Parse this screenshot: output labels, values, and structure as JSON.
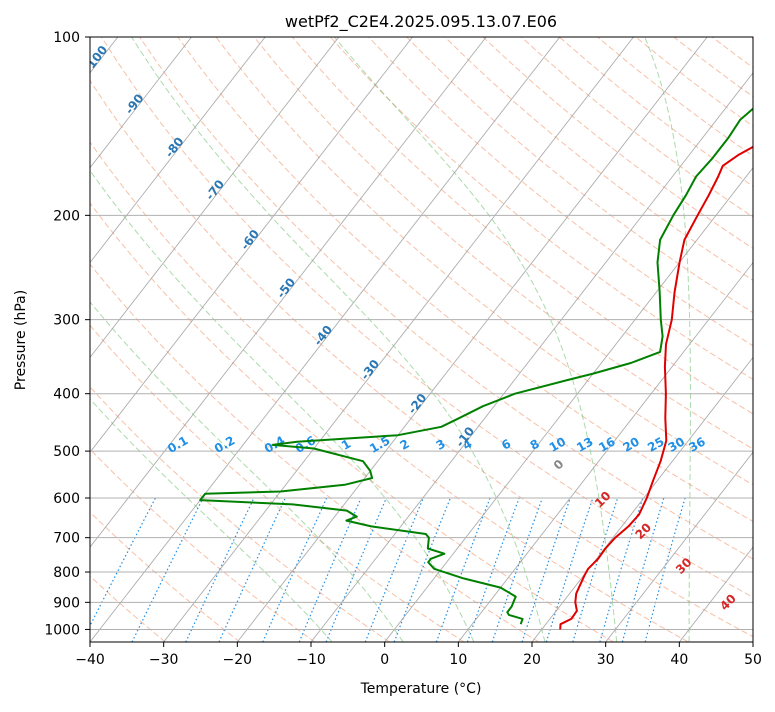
{
  "chart_data": {
    "type": "line",
    "title": "wetPf2_C2E4.2025.095.13.07.E06",
    "xlabel": "Temperature (°C)",
    "ylabel": "Pressure (hPa)",
    "xlim": [
      -40,
      50
    ],
    "ylim": [
      1050,
      100
    ],
    "y_scale": "log",
    "grid": true,
    "x_ticks": [
      -40,
      -30,
      -20,
      -10,
      0,
      10,
      20,
      30,
      40,
      50
    ],
    "y_ticks": [
      100,
      200,
      300,
      400,
      500,
      600,
      700,
      800,
      900,
      1000
    ],
    "colors": {
      "temperature": "#e00000",
      "dewpoint": "#008000",
      "dry_adiabat": "#f4a582",
      "moist_adiabat": "#66bb66",
      "mixing_ratio": "#1f8fe8",
      "isotherm": "#999999",
      "label_blue": "#2a77b4",
      "label_red": "#d62728"
    },
    "series": [
      {
        "points": [
          {
            "p": 1000,
            "t": 22.5
          },
          {
            "p": 980,
            "t": 22.0
          },
          {
            "p": 960,
            "t": 22.9
          },
          {
            "p": 930,
            "t": 22.8
          },
          {
            "p": 900,
            "t": 21.7
          },
          {
            "p": 870,
            "t": 20.9
          },
          {
            "p": 840,
            "t": 20.5
          },
          {
            "p": 810,
            "t": 20.1
          },
          {
            "p": 790,
            "t": 19.9
          },
          {
            "p": 760,
            "t": 20.2
          },
          {
            "p": 730,
            "t": 20.1
          },
          {
            "p": 700,
            "t": 20.3
          },
          {
            "p": 670,
            "t": 20.9
          },
          {
            "p": 640,
            "t": 21.1
          },
          {
            "p": 600,
            "t": 20.4
          },
          {
            "p": 560,
            "t": 19.4
          },
          {
            "p": 520,
            "t": 18.4
          },
          {
            "p": 480,
            "t": 17.0
          },
          {
            "p": 440,
            "t": 14.5
          },
          {
            "p": 400,
            "t": 12.0
          },
          {
            "p": 360,
            "t": 9.0
          },
          {
            "p": 330,
            "t": 6.8
          },
          {
            "p": 300,
            "t": 5.0
          },
          {
            "p": 270,
            "t": 2.5
          },
          {
            "p": 240,
            "t": 0.0
          },
          {
            "p": 220,
            "t": -1.7
          },
          {
            "p": 200,
            "t": -2.5
          },
          {
            "p": 185,
            "t": -3.1
          },
          {
            "p": 172,
            "t": -3.8
          },
          {
            "p": 165,
            "t": -4.3
          },
          {
            "p": 158,
            "t": -3.3
          },
          {
            "p": 150,
            "t": -1.4
          },
          {
            "p": 142,
            "t": 0.6
          },
          {
            "p": 135,
            "t": 3.4
          },
          {
            "p": 130,
            "t": 5.2
          },
          {
            "p": 122,
            "t": 6.5
          },
          {
            "p": 115,
            "t": 6.3
          },
          {
            "p": 108,
            "t": 7.0
          },
          {
            "p": 100,
            "t": 9.0
          }
        ]
      },
      {
        "points": [
          {
            "p": 980,
            "t": 16.6
          },
          {
            "p": 960,
            "t": 16.3
          },
          {
            "p": 945,
            "t": 14.0
          },
          {
            "p": 935,
            "t": 13.5
          },
          {
            "p": 915,
            "t": 13.5
          },
          {
            "p": 880,
            "t": 13.0
          },
          {
            "p": 850,
            "t": 10.0
          },
          {
            "p": 820,
            "t": 4.0
          },
          {
            "p": 790,
            "t": -1.0
          },
          {
            "p": 770,
            "t": -2.5
          },
          {
            "p": 760,
            "t": -2.5
          },
          {
            "p": 745,
            "t": -1.2
          },
          {
            "p": 730,
            "t": -4.0
          },
          {
            "p": 700,
            "t": -5.0
          },
          {
            "p": 690,
            "t": -5.8
          },
          {
            "p": 670,
            "t": -14.0
          },
          {
            "p": 655,
            "t": -18.0
          },
          {
            "p": 645,
            "t": -17.0
          },
          {
            "p": 630,
            "t": -19.0
          },
          {
            "p": 615,
            "t": -27.0
          },
          {
            "p": 605,
            "t": -40.0
          },
          {
            "p": 590,
            "t": -40.0
          },
          {
            "p": 585,
            "t": -30.0
          },
          {
            "p": 570,
            "t": -22.0
          },
          {
            "p": 555,
            "t": -19.0
          },
          {
            "p": 540,
            "t": -20.0
          },
          {
            "p": 520,
            "t": -22.0
          },
          {
            "p": 495,
            "t": -30.0
          },
          {
            "p": 488,
            "t": -36.0
          },
          {
            "p": 482,
            "t": -33.0
          },
          {
            "p": 470,
            "t": -20.0
          },
          {
            "p": 455,
            "t": -15.0
          },
          {
            "p": 440,
            "t": -13.5
          },
          {
            "p": 420,
            "t": -11.5
          },
          {
            "p": 400,
            "t": -8.5
          },
          {
            "p": 380,
            "t": -3.0
          },
          {
            "p": 370,
            "t": 0.0
          },
          {
            "p": 355,
            "t": 4.0
          },
          {
            "p": 340,
            "t": 6.8
          },
          {
            "p": 320,
            "t": 5.5
          },
          {
            "p": 300,
            "t": 3.5
          },
          {
            "p": 270,
            "t": 0.5
          },
          {
            "p": 240,
            "t": -3.0
          },
          {
            "p": 220,
            "t": -5.0
          },
          {
            "p": 200,
            "t": -5.8
          },
          {
            "p": 185,
            "t": -6.2
          },
          {
            "p": 172,
            "t": -6.8
          },
          {
            "p": 160,
            "t": -6.5
          },
          {
            "p": 148,
            "t": -6.5
          },
          {
            "p": 138,
            "t": -6.8
          },
          {
            "p": 130,
            "t": -6.0
          },
          {
            "p": 122,
            "t": -3.0
          },
          {
            "p": 112,
            "t": -0.8
          },
          {
            "p": 104,
            "t": 0.6
          },
          {
            "p": 100,
            "t": 1.0
          }
        ]
      }
    ],
    "background_lines": {
      "isotherms_every": 10,
      "dry_adiabats_theta_K": [
        210,
        220,
        230,
        240,
        250,
        260,
        270,
        280,
        290,
        300,
        310,
        320,
        330,
        340,
        350,
        360,
        370,
        380,
        390,
        400,
        410,
        420,
        430,
        440,
        450,
        460,
        470,
        480,
        490,
        500
      ],
      "moist_adiabats_C": [
        -10,
        0,
        10,
        20,
        30,
        40
      ],
      "mixing_ratios_gkg": [
        0.1,
        0.2,
        0.4,
        0.6,
        1,
        1.5,
        2,
        3,
        4,
        6,
        8,
        10,
        13,
        16,
        20,
        25,
        30,
        36
      ]
    },
    "annotations": {
      "mixing_ratio_labels": [
        "0.1",
        "0.2",
        "0.4",
        "0.6",
        "1",
        "1.5",
        "2",
        "3",
        "4",
        "6",
        "8",
        "10",
        "13",
        "16",
        "20",
        "25",
        "30",
        "36"
      ],
      "isotherm_labels": [
        {
          "text": "-100",
          "t": -100,
          "p": 110
        },
        {
          "text": "-90",
          "t": -90,
          "p": 131
        },
        {
          "text": "-80",
          "t": -80,
          "p": 155
        },
        {
          "text": "-70",
          "t": -70,
          "p": 183
        },
        {
          "text": "-60",
          "t": -60,
          "p": 222
        },
        {
          "text": "-50",
          "t": -50,
          "p": 268
        },
        {
          "text": "-40",
          "t": -40,
          "p": 322
        },
        {
          "text": "-30",
          "t": -30,
          "p": 368
        },
        {
          "text": "-20",
          "t": -20,
          "p": 420
        },
        {
          "text": "-10",
          "t": -10,
          "p": 478
        }
      ],
      "moist_adiabat_labels": [
        {
          "text": "0",
          "t": 24,
          "p": 533,
          "color": "#888888"
        },
        {
          "text": "10",
          "t": 30,
          "p": 610,
          "color": "#d62728"
        },
        {
          "text": "20",
          "t": 35.5,
          "p": 690,
          "color": "#d62728"
        },
        {
          "text": "30",
          "t": 41,
          "p": 790,
          "color": "#d62728"
        },
        {
          "text": "40",
          "t": 47,
          "p": 910,
          "color": "#d62728"
        }
      ]
    }
  }
}
